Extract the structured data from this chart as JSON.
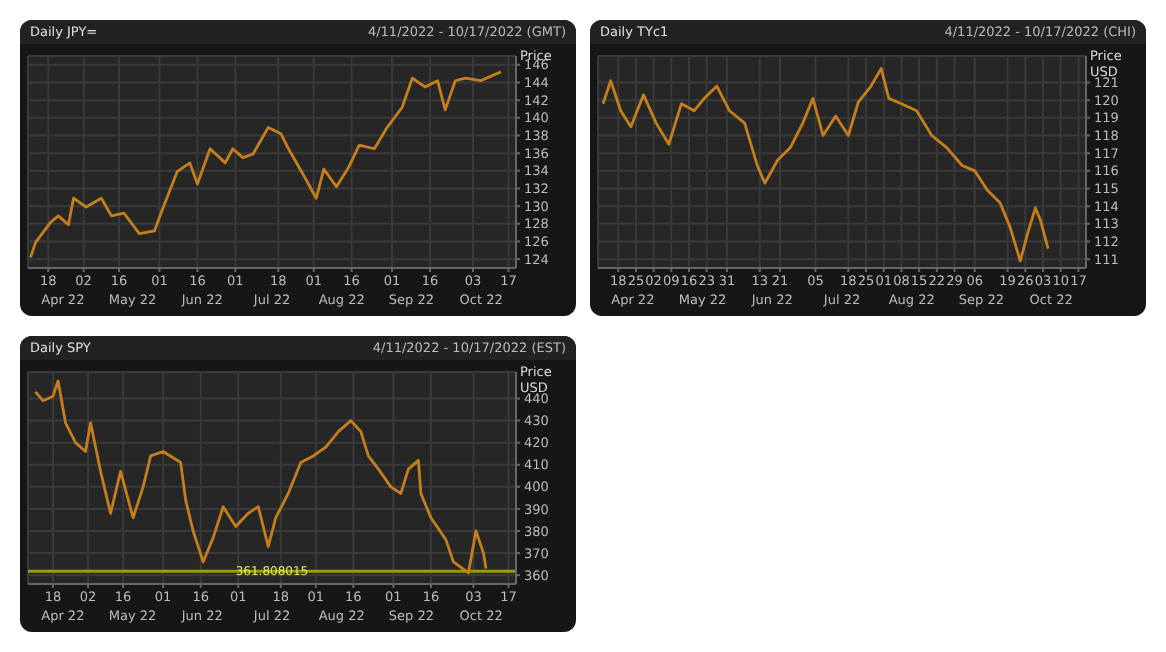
{
  "chart_data": [
    {
      "type": "line",
      "title": "Daily JPY=",
      "subtitle": "4/11/2022 - 10/17/2022 (GMT)",
      "ylabel": "Price",
      "grid": true,
      "marker": "none",
      "x": [
        "2022-04-11",
        "2022-04-13",
        "2022-04-19",
        "2022-04-22",
        "2022-04-26",
        "2022-04-28",
        "2022-05-03",
        "2022-05-09",
        "2022-05-13",
        "2022-05-18",
        "2022-05-24",
        "2022-05-30",
        "2022-06-02",
        "2022-06-08",
        "2022-06-13",
        "2022-06-16",
        "2022-06-21",
        "2022-06-27",
        "2022-06-30",
        "2022-07-04",
        "2022-07-08",
        "2022-07-14",
        "2022-07-19",
        "2022-07-22",
        "2022-07-28",
        "2022-08-02",
        "2022-08-05",
        "2022-08-10",
        "2022-08-15",
        "2022-08-19",
        "2022-08-25",
        "2022-08-30",
        "2022-09-05",
        "2022-09-09",
        "2022-09-14",
        "2022-09-19",
        "2022-09-22",
        "2022-09-26",
        "2022-09-30",
        "2022-10-06",
        "2022-10-14"
      ],
      "series": [
        {
          "color": "#c47f1c",
          "values": [
            124.2,
            125.9,
            128.2,
            128.9,
            127.9,
            130.9,
            129.9,
            130.9,
            128.9,
            129.2,
            126.9,
            127.2,
            129.5,
            133.9,
            134.9,
            132.5,
            136.5,
            134.9,
            136.5,
            135.5,
            135.9,
            138.9,
            138.2,
            136.5,
            133.5,
            130.9,
            134.2,
            132.2,
            134.5,
            136.9,
            136.5,
            138.9,
            141.2,
            144.5,
            143.5,
            144.2,
            140.9,
            144.2,
            144.5,
            144.2,
            145.2
          ]
        }
      ],
      "xlim": [
        "2022-04-10",
        "2022-10-20"
      ],
      "xticks": [
        {
          "value": "2022-04-18",
          "label": "18"
        },
        {
          "value": "2022-05-02",
          "label": "02"
        },
        {
          "value": "2022-05-16",
          "label": "16"
        },
        {
          "value": "2022-06-01",
          "label": "01"
        },
        {
          "value": "2022-06-16",
          "label": "16"
        },
        {
          "value": "2022-07-01",
          "label": "01"
        },
        {
          "value": "2022-07-18",
          "label": "18"
        },
        {
          "value": "2022-08-01",
          "label": "01"
        },
        {
          "value": "2022-08-16",
          "label": "16"
        },
        {
          "value": "2022-09-01",
          "label": "01"
        },
        {
          "value": "2022-09-16",
          "label": "16"
        },
        {
          "value": "2022-10-03",
          "label": "03"
        },
        {
          "value": "2022-10-17",
          "label": "17"
        }
      ],
      "ylim": [
        123,
        147
      ],
      "yticks": [
        124,
        126,
        128,
        130,
        132,
        134,
        136,
        138,
        140,
        142,
        144,
        146
      ],
      "annotations": [
        "Apr 22",
        "May 22",
        "Jun 22",
        "Jul 22",
        "Aug 22",
        "Sep 22",
        "Oct 22"
      ]
    },
    {
      "type": "line",
      "title": "Daily TYc1",
      "subtitle": "4/11/2022 - 10/17/2022 (CHI)",
      "ylabel": "Price USD",
      "grid": true,
      "marker": "none",
      "x": [
        "2022-04-12",
        "2022-04-15",
        "2022-04-19",
        "2022-04-23",
        "2022-04-28",
        "2022-05-03",
        "2022-05-08",
        "2022-05-13",
        "2022-05-18",
        "2022-05-22",
        "2022-05-27",
        "2022-06-01",
        "2022-06-07",
        "2022-06-12",
        "2022-06-15",
        "2022-06-20",
        "2022-06-25",
        "2022-06-30",
        "2022-07-04",
        "2022-07-08",
        "2022-07-13",
        "2022-07-18",
        "2022-07-22",
        "2022-07-27",
        "2022-07-31",
        "2022-08-03",
        "2022-08-08",
        "2022-08-14",
        "2022-08-20",
        "2022-08-26",
        "2022-09-01",
        "2022-09-06",
        "2022-09-11",
        "2022-09-16",
        "2022-09-20",
        "2022-09-24",
        "2022-09-27",
        "2022-09-30",
        "2022-10-02",
        "2022-10-05"
      ],
      "series": [
        {
          "color": "#c47f1c",
          "values": [
            119.8,
            121.1,
            119.4,
            118.5,
            120.3,
            118.7,
            117.5,
            119.8,
            119.4,
            120.1,
            120.8,
            119.4,
            118.7,
            116.3,
            115.3,
            116.6,
            117.3,
            118.7,
            120.1,
            118.0,
            119.1,
            118.0,
            119.9,
            120.8,
            121.8,
            120.1,
            119.8,
            119.4,
            118.0,
            117.3,
            116.3,
            116.0,
            114.9,
            114.2,
            112.8,
            110.9,
            112.5,
            113.9,
            113.2,
            111.6
          ]
        }
      ],
      "xlim": [
        "2022-04-10",
        "2022-10-20"
      ],
      "xticks": [
        {
          "value": "2022-04-18",
          "label": "18"
        },
        {
          "value": "2022-04-25",
          "label": "25"
        },
        {
          "value": "2022-05-02",
          "label": "02"
        },
        {
          "value": "2022-05-09",
          "label": "09"
        },
        {
          "value": "2022-05-16",
          "label": "16"
        },
        {
          "value": "2022-05-23",
          "label": "23"
        },
        {
          "value": "2022-05-31",
          "label": "31"
        },
        {
          "value": "2022-06-13",
          "label": "13"
        },
        {
          "value": "2022-06-21",
          "label": "21"
        },
        {
          "value": "2022-07-05",
          "label": "05"
        },
        {
          "value": "2022-07-18",
          "label": "18"
        },
        {
          "value": "2022-07-25",
          "label": "25"
        },
        {
          "value": "2022-08-01",
          "label": "01"
        },
        {
          "value": "2022-08-08",
          "label": "08"
        },
        {
          "value": "2022-08-15",
          "label": "15"
        },
        {
          "value": "2022-08-22",
          "label": "22"
        },
        {
          "value": "2022-08-29",
          "label": "29"
        },
        {
          "value": "2022-09-06",
          "label": "06"
        },
        {
          "value": "2022-09-19",
          "label": "19"
        },
        {
          "value": "2022-09-26",
          "label": "26"
        },
        {
          "value": "2022-10-03",
          "label": "03"
        },
        {
          "value": "2022-10-10",
          "label": "10"
        },
        {
          "value": "2022-10-17",
          "label": "17"
        }
      ],
      "ylim": [
        110.5,
        122.5
      ],
      "yticks": [
        111,
        112,
        113,
        114,
        115,
        116,
        117,
        118,
        119,
        120,
        121
      ],
      "annotations": [
        "Apr 22",
        "May 22",
        "Jun 22",
        "Jul 22",
        "Aug 22",
        "Sep 22",
        "Oct 22"
      ]
    },
    {
      "type": "line",
      "title": "Daily SPY",
      "subtitle": "4/11/2022 - 10/17/2022 (EST)",
      "ylabel": "Price USD",
      "grid": true,
      "marker": "none",
      "x": [
        "2022-04-11",
        "2022-04-14",
        "2022-04-18",
        "2022-04-20",
        "2022-04-23",
        "2022-04-27",
        "2022-05-01",
        "2022-05-03",
        "2022-05-07",
        "2022-05-11",
        "2022-05-15",
        "2022-05-20",
        "2022-05-24",
        "2022-05-27",
        "2022-06-01",
        "2022-06-08",
        "2022-06-10",
        "2022-06-13",
        "2022-06-17",
        "2022-06-21",
        "2022-06-25",
        "2022-06-30",
        "2022-07-05",
        "2022-07-09",
        "2022-07-13",
        "2022-07-16",
        "2022-07-21",
        "2022-07-26",
        "2022-07-31",
        "2022-08-05",
        "2022-08-10",
        "2022-08-15",
        "2022-08-19",
        "2022-08-22",
        "2022-08-26",
        "2022-08-31",
        "2022-09-04",
        "2022-09-07",
        "2022-09-11",
        "2022-09-12",
        "2022-09-16",
        "2022-09-22",
        "2022-09-25",
        "2022-10-01",
        "2022-10-04",
        "2022-10-07",
        "2022-10-08"
      ],
      "series": [
        {
          "color": "#c47f1c",
          "values": [
            443,
            439,
            441,
            448,
            429,
            420,
            416,
            429,
            407,
            388,
            407,
            386,
            400,
            414,
            416,
            411,
            394,
            380,
            366,
            377,
            391,
            382,
            388,
            391,
            373,
            386,
            397,
            411,
            414,
            418,
            425,
            430,
            425,
            414,
            408,
            400,
            397,
            408,
            412,
            397,
            386,
            376,
            366,
            361,
            380,
            370,
            363
          ]
        }
      ],
      "xlim": [
        "2022-04-08",
        "2022-10-20"
      ],
      "xticks": [
        {
          "value": "2022-04-18",
          "label": "18"
        },
        {
          "value": "2022-05-02",
          "label": "02"
        },
        {
          "value": "2022-05-16",
          "label": "16"
        },
        {
          "value": "2022-06-01",
          "label": "01"
        },
        {
          "value": "2022-06-16",
          "label": "16"
        },
        {
          "value": "2022-07-01",
          "label": "01"
        },
        {
          "value": "2022-07-18",
          "label": "18"
        },
        {
          "value": "2022-08-01",
          "label": "01"
        },
        {
          "value": "2022-08-16",
          "label": "16"
        },
        {
          "value": "2022-09-01",
          "label": "01"
        },
        {
          "value": "2022-09-16",
          "label": "16"
        },
        {
          "value": "2022-10-03",
          "label": "03"
        },
        {
          "value": "2022-10-17",
          "label": "17"
        }
      ],
      "ylim": [
        356,
        452
      ],
      "yticks": [
        360,
        370,
        380,
        390,
        400,
        410,
        420,
        430,
        440
      ],
      "ref_lines": [
        {
          "axis": "y",
          "value": 361.808015,
          "label": "361.808015",
          "color": "#9a9a10"
        }
      ],
      "annotations": [
        "Apr 22",
        "May 22",
        "Jun 22",
        "Jul 22",
        "Aug 22",
        "Sep 22",
        "Oct 22"
      ]
    }
  ]
}
